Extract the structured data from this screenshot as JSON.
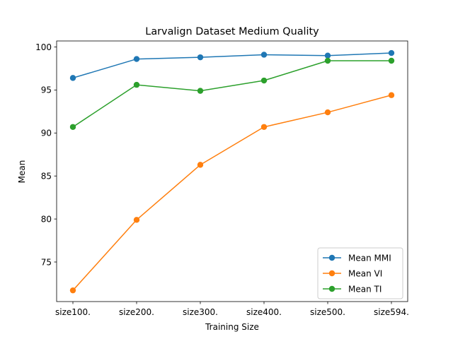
{
  "chart_data": {
    "type": "line",
    "title": "Larvalign Dataset Medium Quality",
    "xlabel": "Training Size",
    "ylabel": "Mean",
    "categories": [
      "size100.",
      "size200.",
      "size300.",
      "size400.",
      "size500.",
      "size594."
    ],
    "ylim": [
      70.4,
      100.7
    ],
    "yticks": [
      75,
      80,
      85,
      90,
      95,
      100
    ],
    "grid": false,
    "legend_position": "lower-right",
    "series": [
      {
        "name": "Mean MMI",
        "color": "#1f77b4",
        "values": [
          96.4,
          98.6,
          98.8,
          99.1,
          99.0,
          99.3
        ]
      },
      {
        "name": "Mean VI",
        "color": "#ff7f0e",
        "values": [
          71.7,
          79.9,
          86.3,
          90.7,
          92.4,
          94.4
        ]
      },
      {
        "name": "Mean TI",
        "color": "#2ca02c",
        "values": [
          90.7,
          95.6,
          94.9,
          96.1,
          98.4,
          98.4
        ]
      }
    ]
  }
}
